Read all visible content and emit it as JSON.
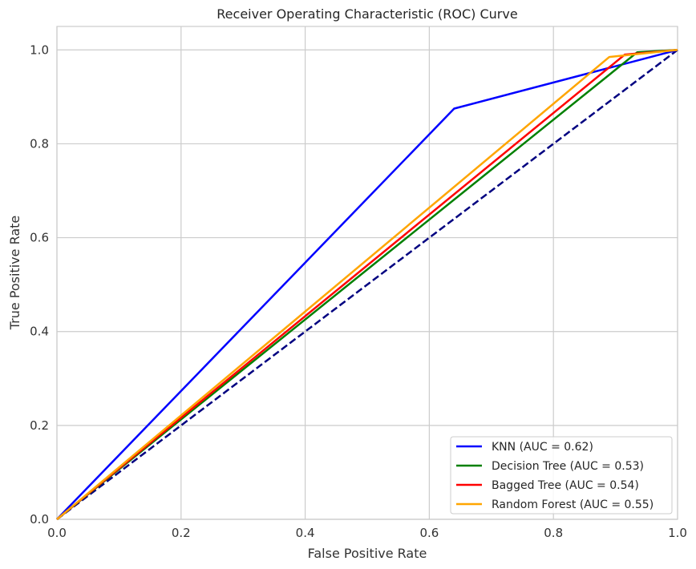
{
  "chart_data": {
    "type": "line",
    "title": "Receiver Operating Characteristic (ROC) Curve",
    "xlabel": "False Positive Rate",
    "ylabel": "True Positive Rate",
    "xlim": [
      0.0,
      1.0
    ],
    "ylim": [
      0.0,
      1.05
    ],
    "xticks": [
      0.0,
      0.2,
      0.4,
      0.6,
      0.8,
      1.0
    ],
    "yticks": [
      0.0,
      0.2,
      0.4,
      0.6,
      0.8,
      1.0
    ],
    "xtick_labels": [
      "0.0",
      "0.2",
      "0.4",
      "0.6",
      "0.8",
      "1.0"
    ],
    "ytick_labels": [
      "0.0",
      "0.2",
      "0.4",
      "0.6",
      "0.8",
      "1.0"
    ],
    "grid": true,
    "legend_position": "lower-right",
    "series": [
      {
        "name": "KNN (AUC = 0.62)",
        "color": "#0000ff",
        "style": "solid",
        "x": [
          0.0,
          0.64,
          1.0
        ],
        "y": [
          0.0,
          0.875,
          1.0
        ]
      },
      {
        "name": "Decision Tree (AUC = 0.53)",
        "color": "#008000",
        "style": "solid",
        "x": [
          0.0,
          0.935,
          1.0
        ],
        "y": [
          0.0,
          0.995,
          1.0
        ]
      },
      {
        "name": "Bagged Tree (AUC = 0.54)",
        "color": "#ff0000",
        "style": "solid",
        "x": [
          0.0,
          0.915,
          1.0
        ],
        "y": [
          0.0,
          0.99,
          1.0
        ]
      },
      {
        "name": "Random Forest (AUC = 0.55)",
        "color": "#ffa500",
        "style": "solid",
        "x": [
          0.0,
          0.89,
          1.0
        ],
        "y": [
          0.0,
          0.985,
          1.0
        ]
      },
      {
        "color": "#000080",
        "style": "dashed",
        "x": [
          0.0,
          1.0
        ],
        "y": [
          0.0,
          1.0
        ]
      }
    ]
  }
}
